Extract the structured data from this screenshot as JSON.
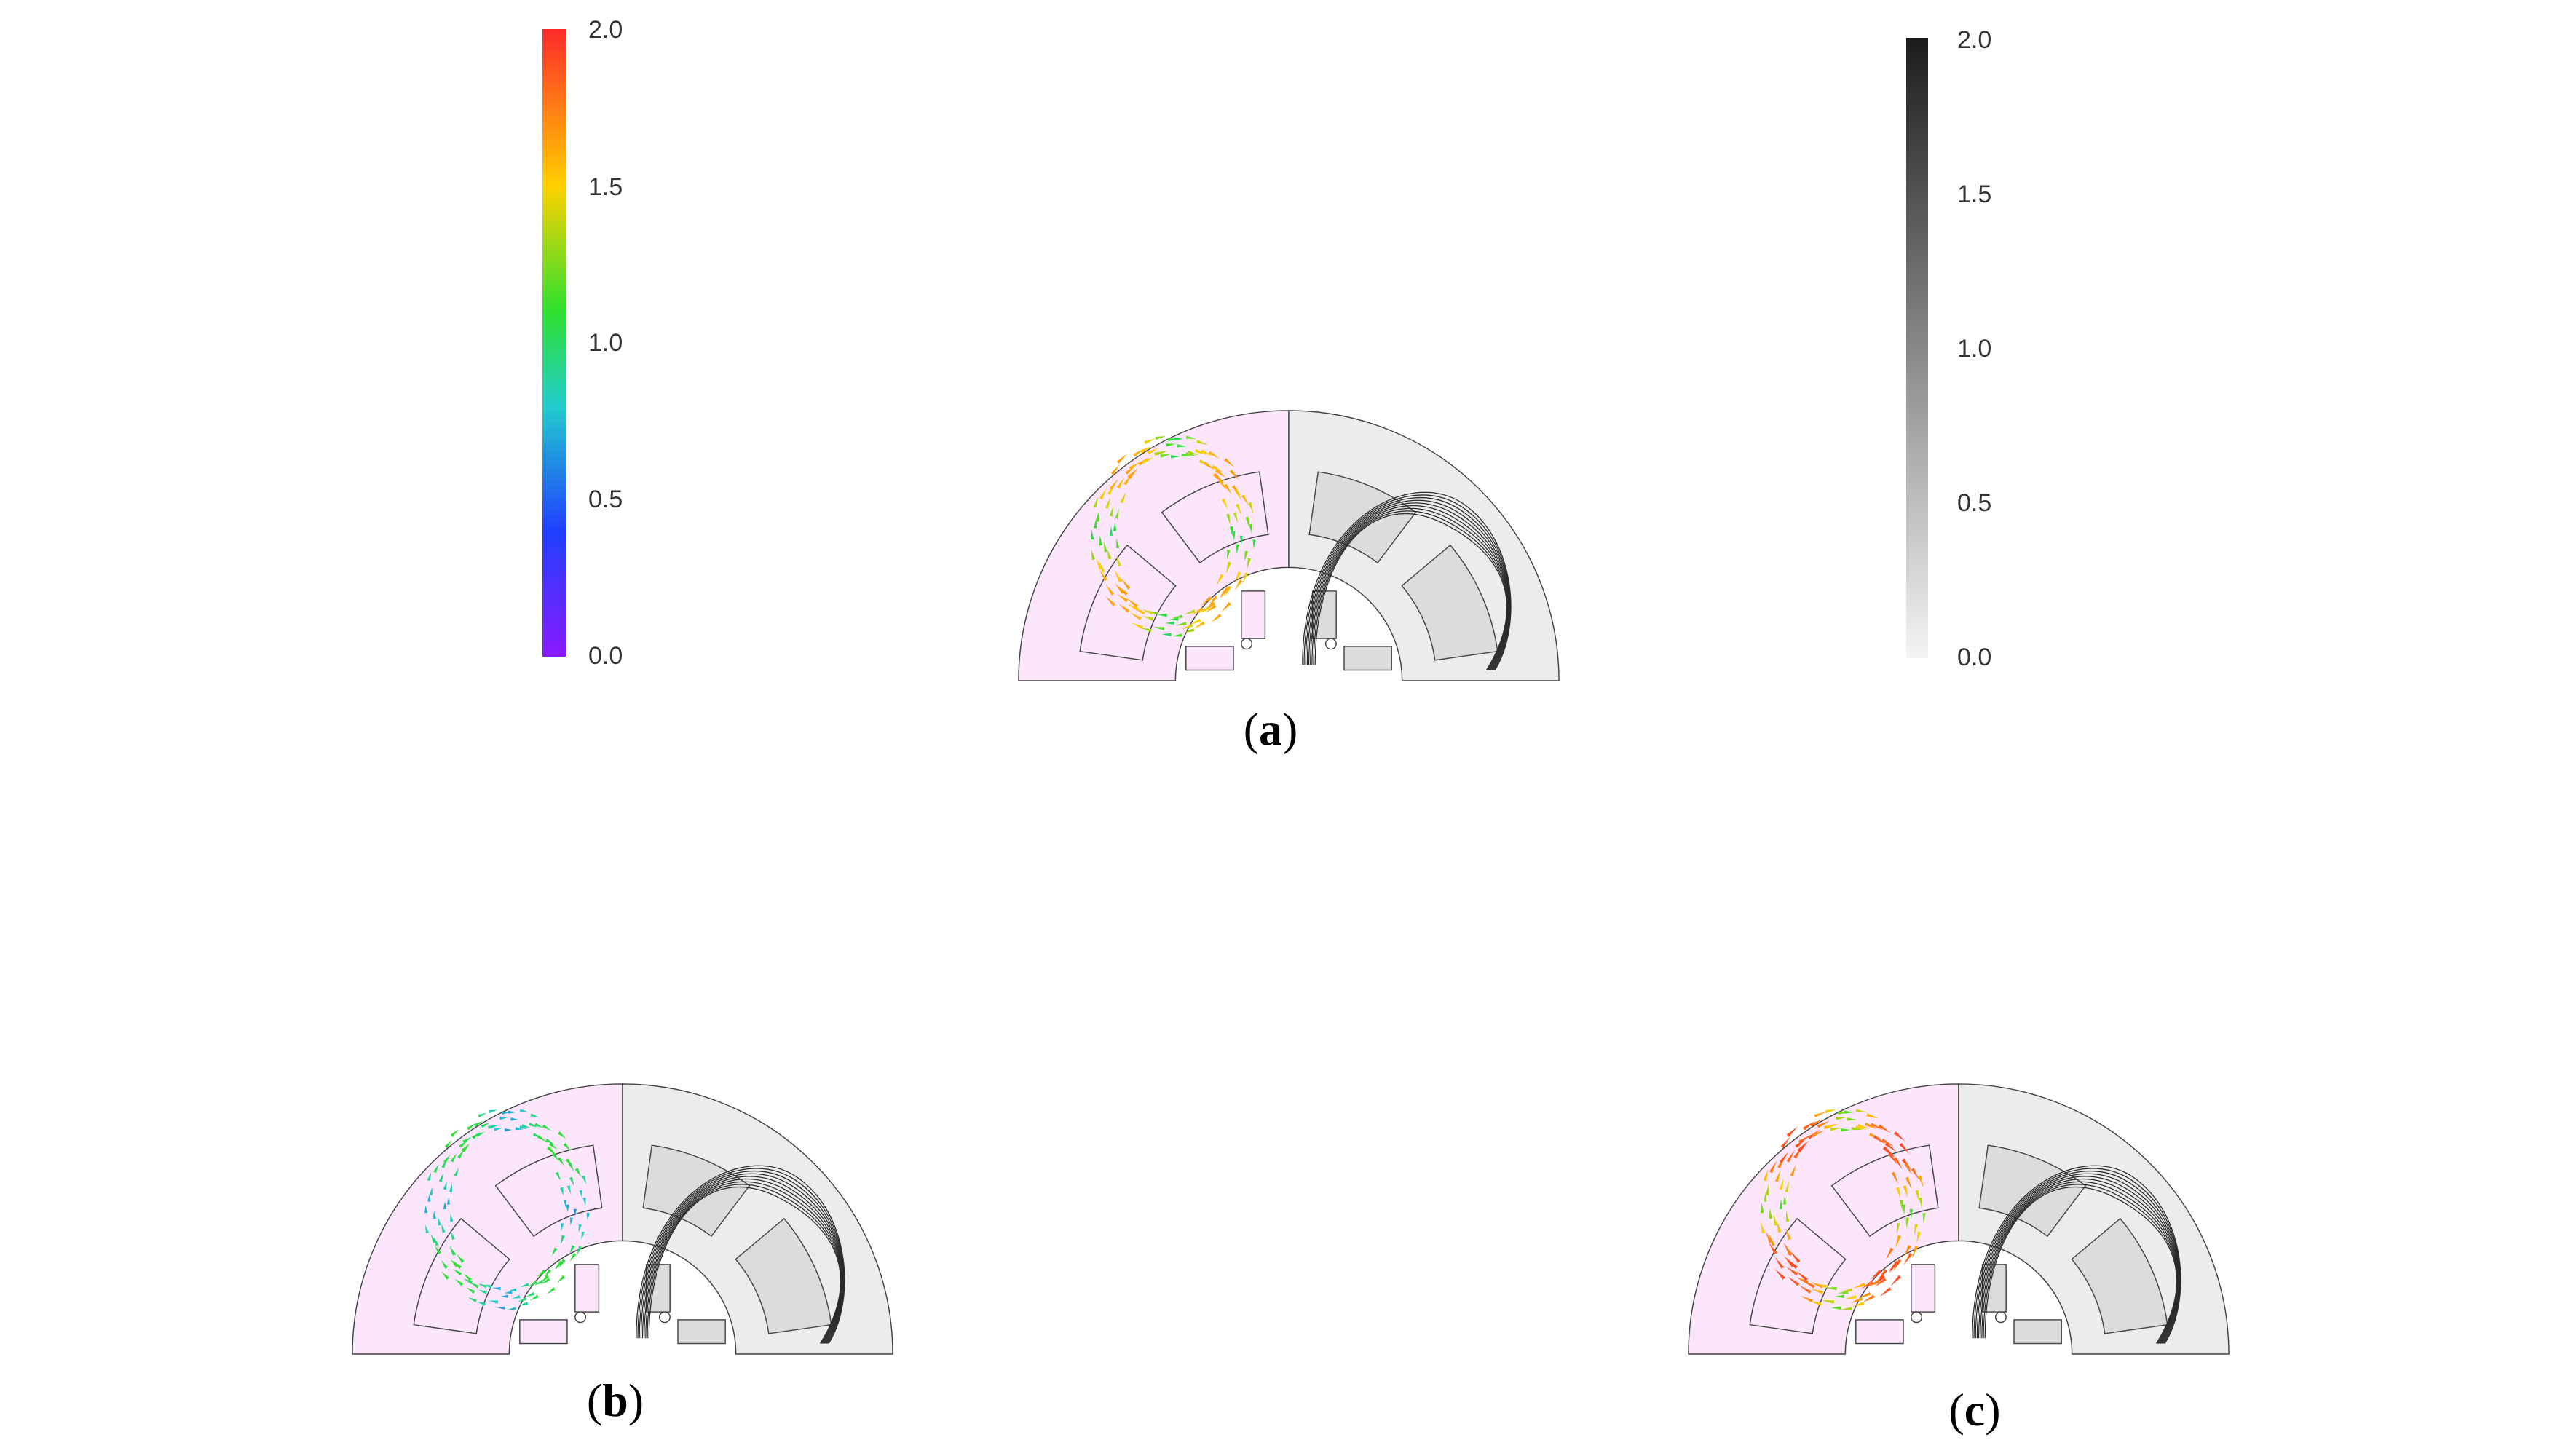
{
  "colorbar_vector": {
    "ticks": [
      "2.0",
      "1.5",
      "1.0",
      "0.5",
      "0.0"
    ],
    "colors": [
      "#ff2a2a",
      "#ffd000",
      "#2ee02e",
      "#22cccc",
      "#2040ff",
      "#8a1aff"
    ]
  },
  "colorbar_flux": {
    "ticks": [
      "2.0",
      "1.5",
      "1.0",
      "0.5",
      "0.0"
    ],
    "colors": [
      "#1c1c1c",
      "#f4f4f4"
    ]
  },
  "panels": [
    {
      "caption_open": "(",
      "caption_letter": "a",
      "caption_close": ")",
      "max_level": 1.65
    },
    {
      "caption_open": "(",
      "caption_letter": "b",
      "caption_close": ")",
      "max_level": 1.1
    },
    {
      "caption_open": "(",
      "caption_letter": "c",
      "caption_close": ")",
      "max_level": 1.9
    }
  ],
  "colors": {
    "vector_side_bg": "#fbe6fb",
    "flux_side_bg": "#ececec",
    "outline": "#444444",
    "flux_line": "#2a2a2a"
  }
}
